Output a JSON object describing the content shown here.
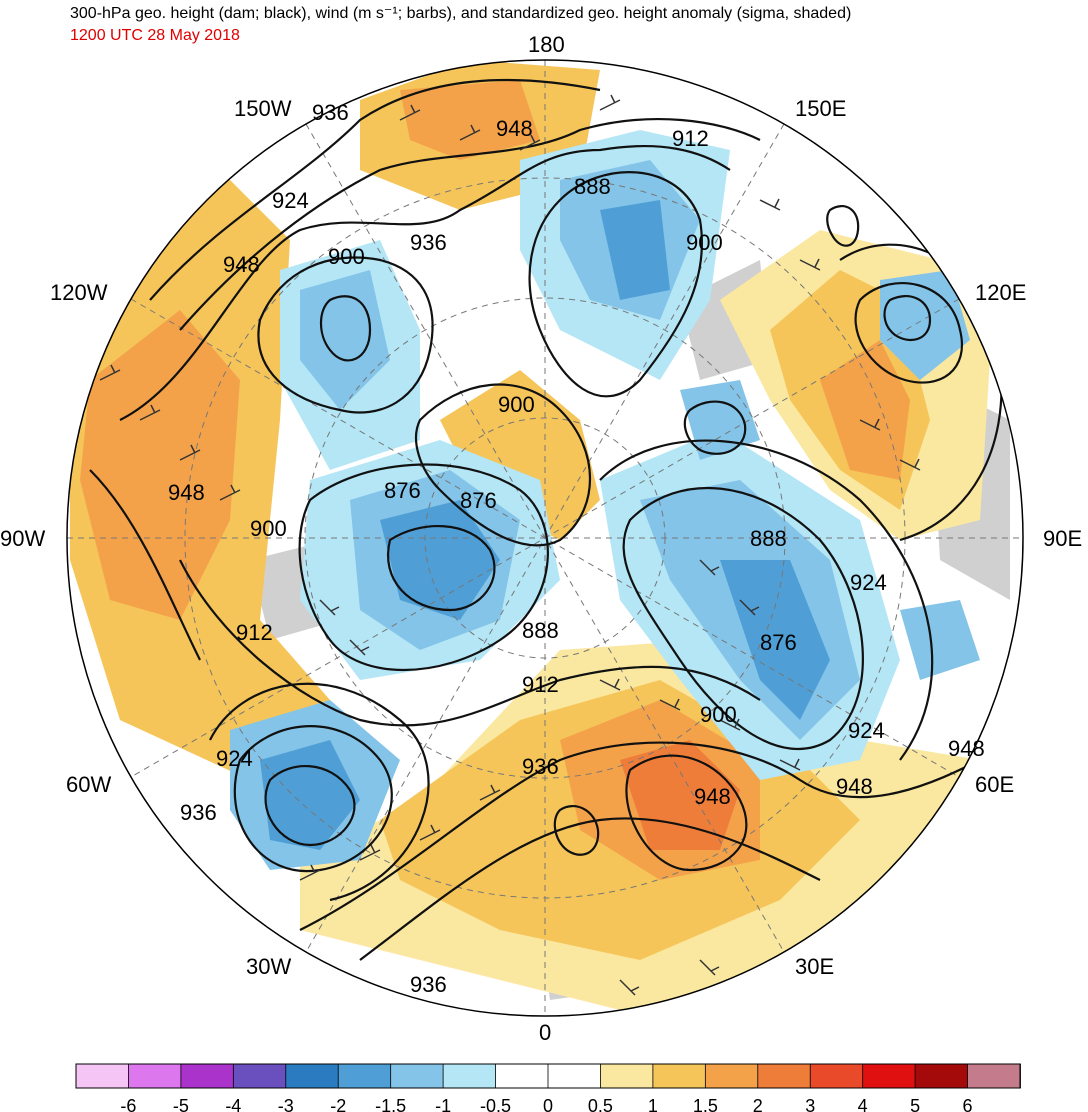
{
  "title": "300-hPa geo. height (dam; black), wind (m s⁻¹; barbs), and standardized geo. height anomaly (sigma, shaded)",
  "valid_time": "1200 UTC 28 May 2018",
  "longitude_labels": [
    "180",
    "150E",
    "120E",
    "90E",
    "60E",
    "30E",
    "0",
    "30W",
    "60W",
    "90W",
    "120W",
    "150W"
  ],
  "contour_labels": [
    "936",
    "948",
    "912",
    "924",
    "888",
    "900",
    "936",
    "900",
    "120W",
    "948",
    "900",
    "876",
    "876",
    "888",
    "924",
    "900",
    "888",
    "912",
    "876",
    "912",
    "924",
    "900",
    "924",
    "948",
    "936",
    "936",
    "948",
    "936",
    "936",
    "948"
  ],
  "colorbar": {
    "ticks": [
      "-6",
      "-5",
      "-4",
      "-3",
      "-2",
      "-1.5",
      "-1",
      "-0.5",
      "0",
      "0.5",
      "1",
      "1.5",
      "2",
      "3",
      "4",
      "5",
      "6"
    ],
    "colors": [
      "#f5c6f5",
      "#dd77ee",
      "#aa33cc",
      "#6a4fbf",
      "#2b7bc0",
      "#4f9fd6",
      "#83c4e8",
      "#b4e6f6",
      "#ffffff",
      "#ffffff",
      "#fbe8a0",
      "#f5c55a",
      "#f4a24a",
      "#ef7d3a",
      "#e84a2a",
      "#e01010",
      "#a40a0a",
      "#c47b8b"
    ]
  }
}
